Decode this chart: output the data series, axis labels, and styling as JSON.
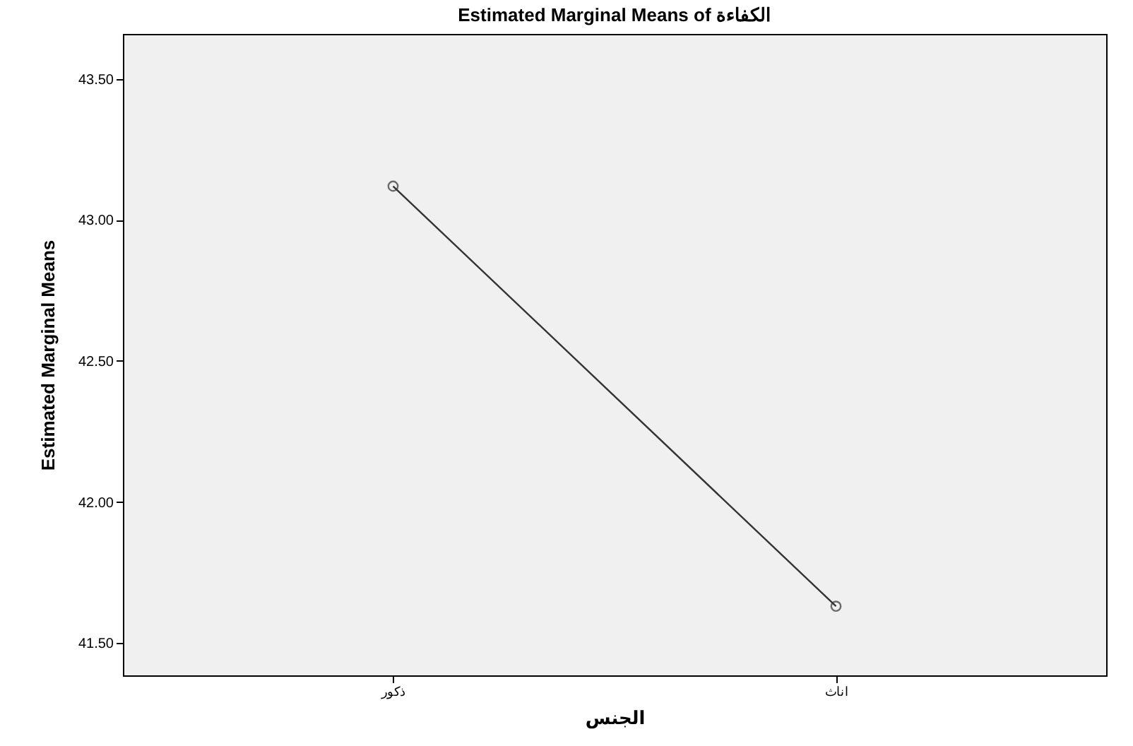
{
  "chart_data": {
    "type": "line",
    "title": "Estimated Marginal Means of الكفاءة",
    "xlabel": "الجنس",
    "ylabel": "Estimated Marginal Means",
    "categories": [
      "ذكور",
      "اناث"
    ],
    "series": [
      {
        "color": "#333333",
        "values": [
          43.12,
          41.63
        ]
      }
    ],
    "ylim": [
      41.385,
      43.66
    ],
    "yticks": [
      {
        "value": 41.5,
        "label": "41.50"
      },
      {
        "value": 42,
        "label": "42.00"
      },
      {
        "value": 42.5,
        "label": "42.50"
      },
      {
        "value": 43,
        "label": "43.00"
      },
      {
        "value": 43.5,
        "label": "43.50"
      }
    ],
    "marker": "circle",
    "line_style": "solid",
    "grid": false,
    "legend": false
  }
}
